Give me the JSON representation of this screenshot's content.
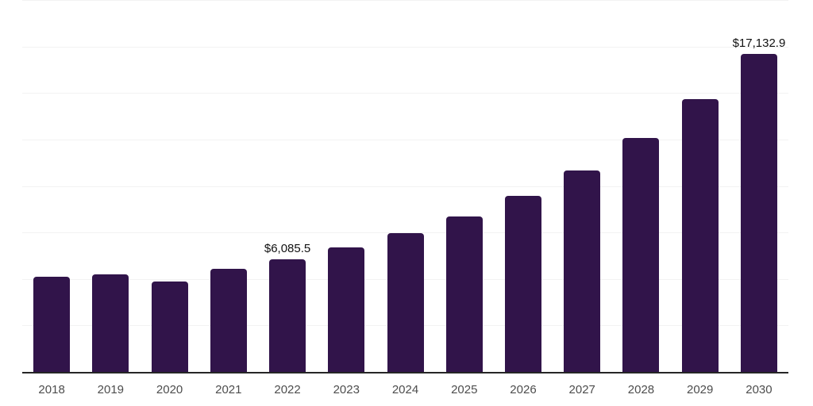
{
  "chart_data": {
    "type": "bar",
    "title": "",
    "xlabel": "",
    "ylabel": "",
    "categories": [
      "2018",
      "2019",
      "2020",
      "2021",
      "2022",
      "2023",
      "2024",
      "2025",
      "2026",
      "2027",
      "2028",
      "2029",
      "2030"
    ],
    "values": [
      5160,
      5290,
      4900,
      5590,
      6085.5,
      6720,
      7490,
      8410,
      9520,
      10870,
      12620,
      14710,
      17132.9
    ],
    "data_labels": {
      "2022": "$6,085.5",
      "2030": "$17,132.9"
    },
    "ylim": [
      0,
      20000
    ],
    "gridline_step": 2500,
    "grid": "on",
    "legend": "none",
    "colors": {
      "bar": "#31144A",
      "gridline": "#F2F2F2",
      "axis_line": "#262626",
      "tick_label": "#4D4D4D",
      "data_label": "#111111",
      "background": "#FFFFFF"
    }
  }
}
